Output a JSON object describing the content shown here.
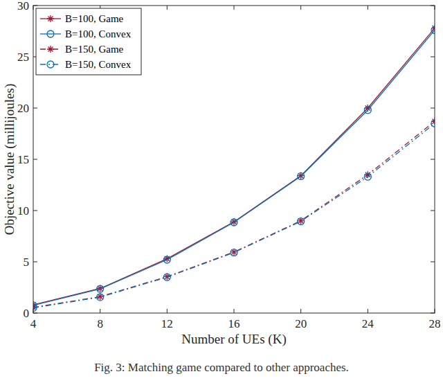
{
  "chart_data": {
    "type": "line",
    "x_label": "Number of UEs (K)",
    "y_label": "Objective value (millijoules)",
    "caption": "Fig. 3: Matching game compared to other approaches.",
    "x": [
      4,
      8,
      12,
      16,
      20,
      24,
      28
    ],
    "xlim": [
      4,
      28
    ],
    "xticks": [
      4,
      8,
      12,
      16,
      20,
      24,
      28
    ],
    "ylim": [
      0,
      30
    ],
    "yticks": [
      0,
      5,
      10,
      15,
      20,
      25,
      30
    ],
    "grid": false,
    "legend": "top-left",
    "series": [
      {
        "name": "B=100, Game",
        "color": "#a2142f",
        "marker": "asterisk",
        "line_style": "solid",
        "values": [
          0.8,
          2.4,
          5.3,
          8.9,
          13.4,
          20.0,
          27.8
        ]
      },
      {
        "name": "B=100, Convex",
        "color": "#0072bd",
        "marker": "circle",
        "line_style": "solid",
        "values": [
          0.75,
          2.35,
          5.2,
          8.85,
          13.35,
          19.8,
          27.6
        ]
      },
      {
        "name": "B=150, Game",
        "color": "#a2142f",
        "marker": "asterisk",
        "line_style": "dashdot",
        "values": [
          0.55,
          1.6,
          3.55,
          5.95,
          9.0,
          13.5,
          18.7
        ]
      },
      {
        "name": "B=150, Convex",
        "color": "#0072bd",
        "marker": "circle",
        "line_style": "dashdot",
        "values": [
          0.5,
          1.55,
          3.5,
          5.9,
          8.95,
          13.3,
          18.5
        ]
      }
    ]
  }
}
